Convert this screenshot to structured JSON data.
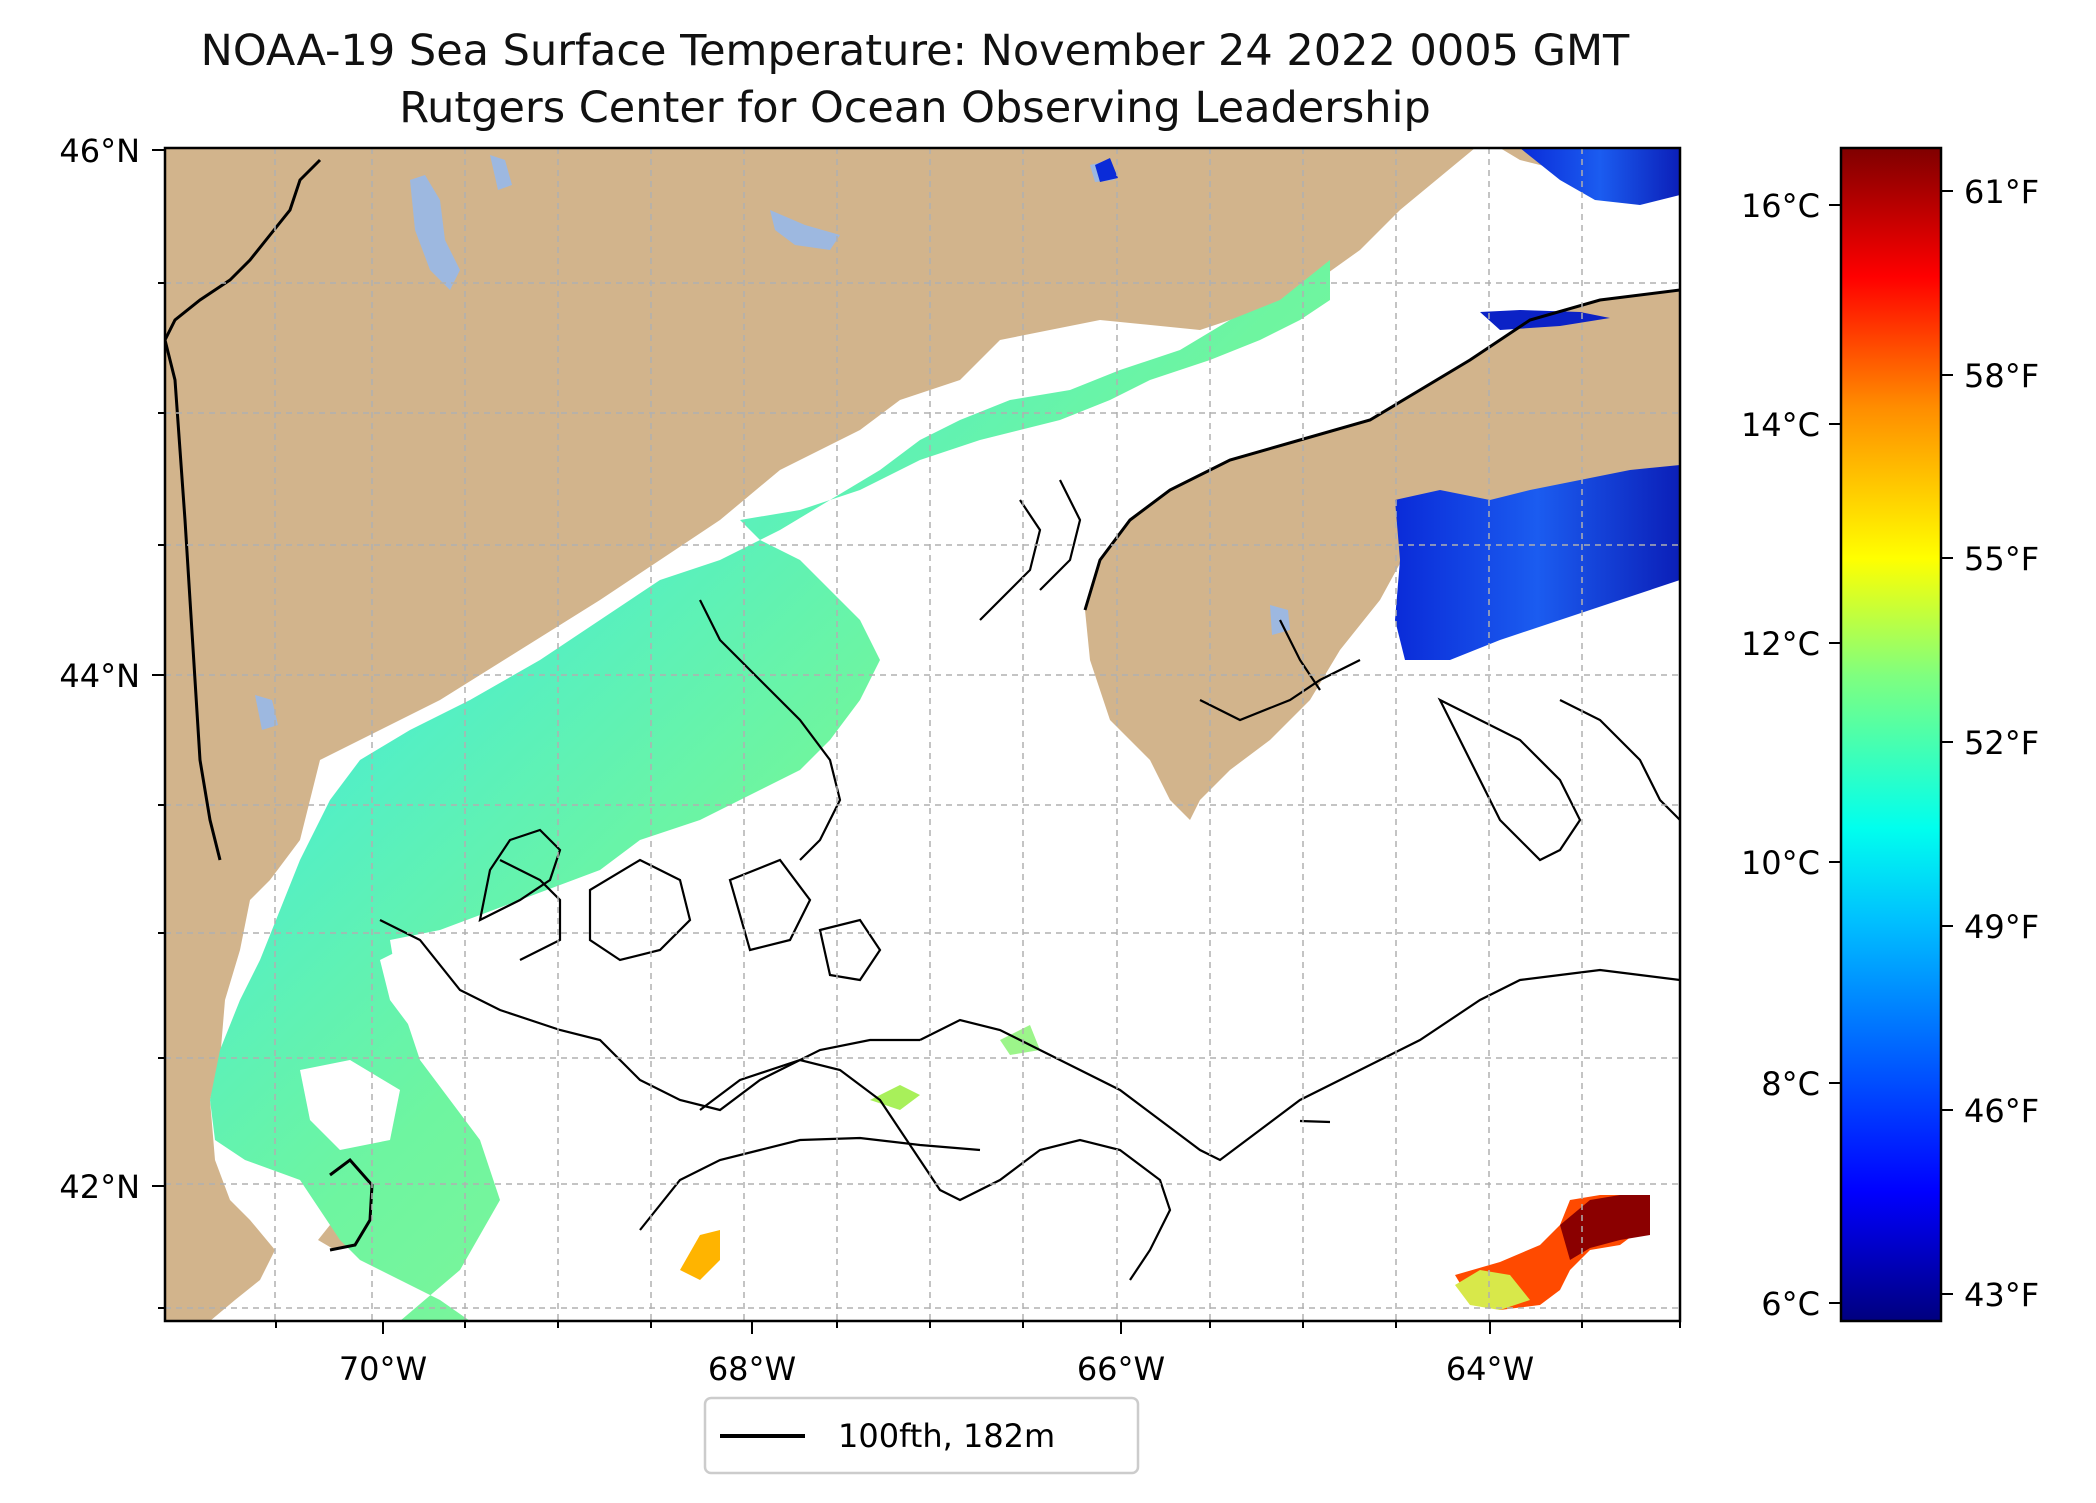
{
  "title": {
    "line1": "NOAA-19 Sea Surface Temperature: November 24 2022 0005 GMT",
    "line2": "Rutgers Center for Ocean Observing Leadership"
  },
  "axes": {
    "lon_ticks": [
      "70°W",
      "68°W",
      "66°W",
      "64°W"
    ],
    "lat_ticks": [
      "46°N",
      "44°N",
      "42°N"
    ]
  },
  "colorbar": {
    "celsius_ticks": [
      "16°C",
      "14°C",
      "12°C",
      "10°C",
      "8°C",
      "6°C"
    ],
    "fahrenheit_ticks": [
      "61°F",
      "58°F",
      "55°F",
      "52°F",
      "49°F",
      "46°F",
      "43°F"
    ],
    "colormap": [
      "#00007f",
      "#0000ff",
      "#007fff",
      "#00ffff",
      "#7fff7f",
      "#ffff00",
      "#ff7f00",
      "#ff0000",
      "#7f0000"
    ]
  },
  "legend": {
    "label": "100fth, 182m"
  },
  "colors": {
    "land": "#d2b48c",
    "lake": "#9db8e0",
    "no_data": "#ffffff"
  }
}
